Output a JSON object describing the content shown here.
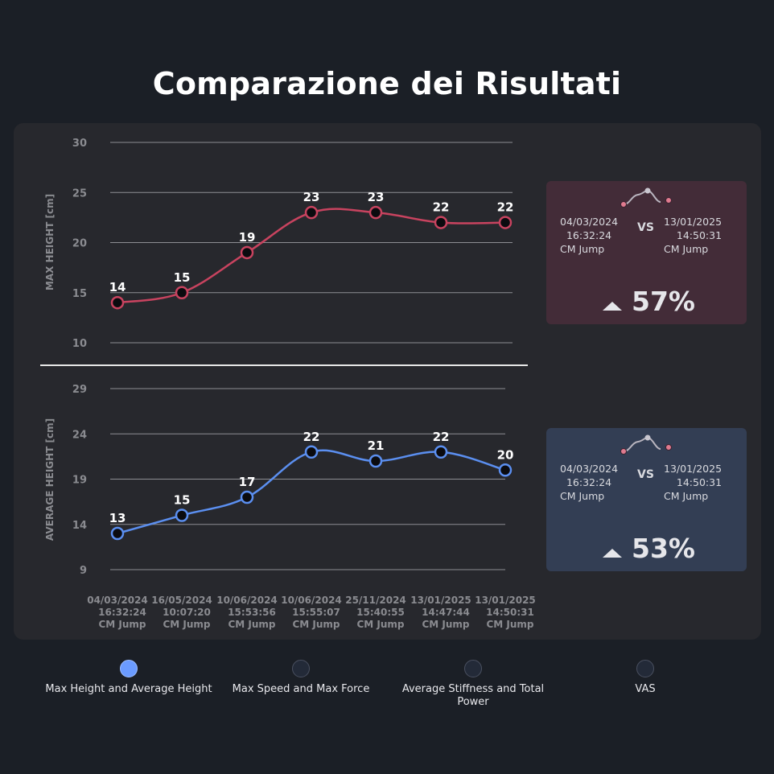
{
  "page_title": "Comparazione dei Risultati",
  "chart_data": [
    {
      "type": "line",
      "ylabel": "MAX HEIGHT [cm]",
      "yticks": [
        10,
        15,
        20,
        25,
        30
      ],
      "ylim": [
        10,
        30
      ],
      "series": [
        {
          "values": [
            14,
            15,
            19,
            23,
            23,
            22,
            22
          ],
          "color": "#c8435f"
        }
      ],
      "grid": true
    },
    {
      "type": "line",
      "ylabel": "AVERAGE HEIGHT [cm]",
      "yticks": [
        9,
        14,
        19,
        24,
        29
      ],
      "ylim": [
        9,
        29
      ],
      "series": [
        {
          "values": [
            13,
            15,
            17,
            22,
            21,
            22,
            20
          ],
          "color": "#5b8ff0"
        }
      ],
      "grid": true
    }
  ],
  "x_categories": [
    [
      "04/03/2024",
      "16:32:24",
      "CM Jump"
    ],
    [
      "16/05/2024",
      "10:07:20",
      "CM Jump"
    ],
    [
      "10/06/2024",
      "15:53:56",
      "CM Jump"
    ],
    [
      "10/06/2024",
      "15:55:07",
      "CM Jump"
    ],
    [
      "25/11/2024",
      "15:40:55",
      "CM Jump"
    ],
    [
      "13/01/2025",
      "14:47:44",
      "CM Jump"
    ],
    [
      "13/01/2025",
      "14:50:31",
      "CM Jump"
    ]
  ],
  "cards": [
    {
      "from": {
        "date": "04/03/2024",
        "time": "16:32:24",
        "test": "CM Jump"
      },
      "vs": "VS",
      "to": {
        "date": "13/01/2025",
        "time": "14:50:31",
        "test": "CM Jump"
      },
      "percent": "57%",
      "trend": "up",
      "bg": "#432c38",
      "dot_color": "#e07b8f"
    },
    {
      "from": {
        "date": "04/03/2024",
        "time": "16:32:24",
        "test": "CM Jump"
      },
      "vs": "VS",
      "to": {
        "date": "13/01/2025",
        "time": "14:50:31",
        "test": "CM Jump"
      },
      "percent": "53%",
      "trend": "up",
      "bg": "#333e54",
      "dot_color": "#e07b8f"
    }
  ],
  "tabs": [
    {
      "label": "Max Height and Average Height",
      "active": true
    },
    {
      "label": "Max Speed and Max Force",
      "active": false
    },
    {
      "label": "Average Stiffness and Total Power",
      "active": false
    },
    {
      "label": "VAS",
      "active": false
    }
  ],
  "colors": {
    "background": "#1b1f26",
    "panel": "#27282d",
    "accent": "#6b9bff"
  }
}
